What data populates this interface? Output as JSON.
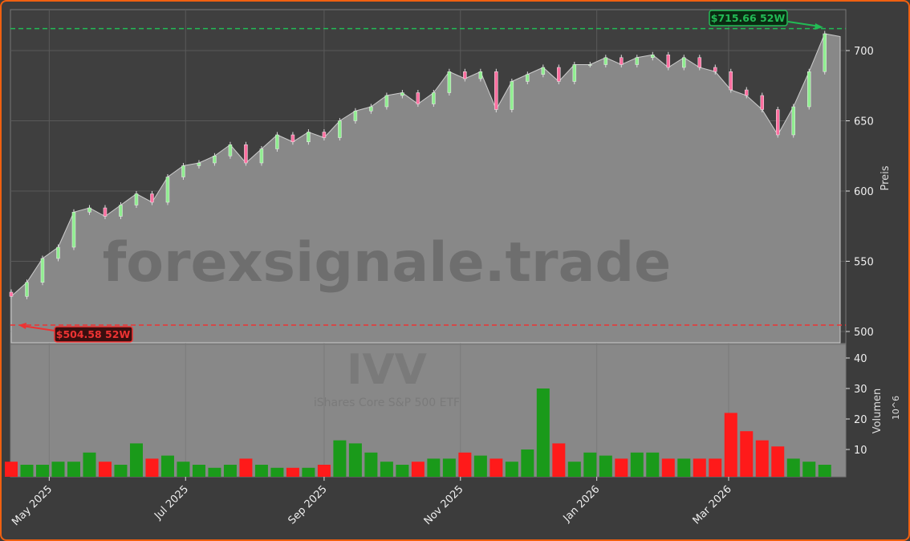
{
  "chart_data": {
    "type": "candlestick+volume",
    "symbol": "IVV",
    "name": "iShares Core S&P 500 ETF",
    "watermark": "forexsignale.trade",
    "ylabel": "Preis",
    "volume_label": "Volumen",
    "volume_unit": "10^6",
    "ylim": [
      490,
      728
    ],
    "volume_ylim": [
      0,
      44
    ],
    "yticks": [
      500,
      550,
      600,
      650,
      700
    ],
    "volume_yticks": [
      10,
      20,
      30,
      40
    ],
    "xticks": [
      {
        "date": "2025-05-01",
        "label": "May 2025"
      },
      {
        "date": "2025-07-01",
        "label": "Jul 2025"
      },
      {
        "date": "2025-09-01",
        "label": "Sep 2025"
      },
      {
        "date": "2025-11-01",
        "label": "Nov 2025"
      },
      {
        "date": "2026-01-01",
        "label": "Jan 2026"
      },
      {
        "date": "2026-03-01",
        "label": "Mar 2026"
      }
    ],
    "start_date": "2025-04-14",
    "interval": "weekly",
    "close": [
      525,
      535,
      552,
      560,
      585,
      588,
      582,
      590,
      598,
      592,
      610,
      618,
      620,
      625,
      633,
      620,
      630,
      640,
      635,
      642,
      638,
      650,
      657,
      660,
      668,
      670,
      662,
      670,
      685,
      680,
      685,
      658,
      678,
      683,
      688,
      678,
      690,
      690,
      695,
      690,
      695,
      697,
      688,
      695,
      688,
      685,
      672,
      668,
      658,
      640,
      660,
      685,
      712
    ],
    "volume": [
      6,
      5,
      5,
      6,
      6,
      9,
      6,
      5,
      12,
      7,
      8,
      6,
      5,
      4,
      5,
      7,
      5,
      4,
      4,
      4,
      5,
      13,
      12,
      9,
      6,
      5,
      6,
      7,
      7,
      9,
      8,
      7,
      6,
      10,
      30,
      12,
      6,
      9,
      8,
      7,
      9,
      9,
      7,
      7,
      7,
      7,
      22,
      16,
      13,
      11,
      7,
      6,
      5
    ],
    "high_52w": {
      "value": 715.66,
      "label": "$715.66 52W",
      "color": "#22bb55"
    },
    "low_52w": {
      "value": 504.58,
      "label": "$504.58 52W",
      "color": "#ee3333"
    },
    "colors": {
      "up": "#1a9a1a",
      "down": "#ff1a1a",
      "area": "#888888",
      "frame": "#f06010"
    },
    "grid": true
  }
}
